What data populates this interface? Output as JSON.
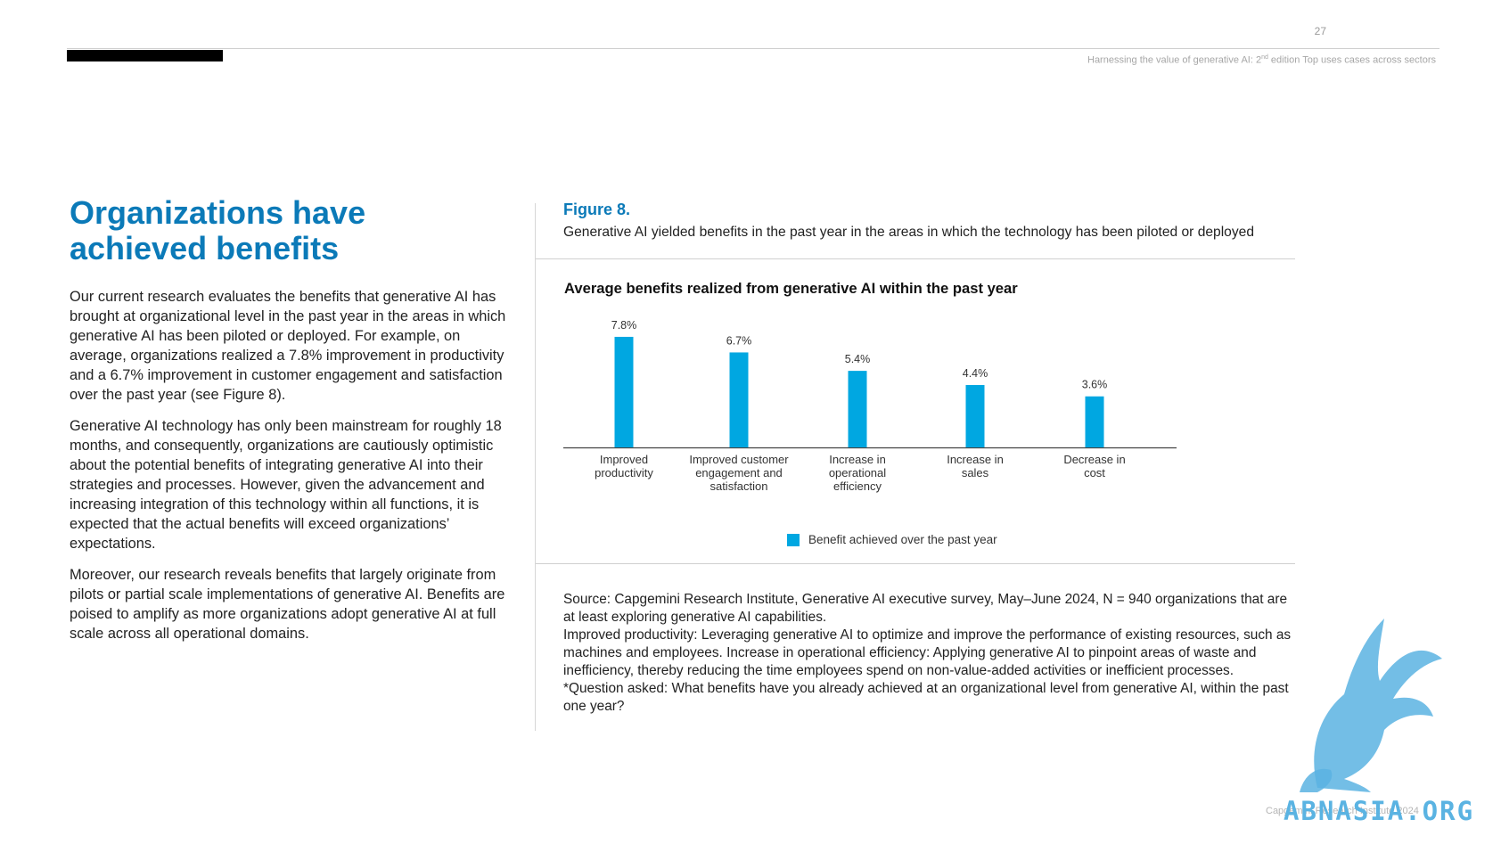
{
  "header": {
    "page_number": "27",
    "running_head_pre": "Harnessing the value of generative AI: 2",
    "running_head_sup": "nd",
    "running_head_post": " edition Top uses cases across sectors"
  },
  "main": {
    "heading": "Organizations have achieved benefits",
    "paragraphs": [
      "Our current research evaluates the benefits that generative AI has brought at organizational level in the past year in the areas in which generative AI has been piloted or deployed. For example, on average, organizations realized a 7.8% improvement in productivity and a 6.7% improvement in customer engagement and satisfaction over the past year (see Figure 8).",
      "Generative AI technology has only been mainstream for roughly 18 months, and consequently, organizations are cautiously optimistic about the potential benefits of integrating generative AI into their strategies and processes. However, given the advancement and increasing integration of this technology within all functions, it is expected that the actual benefits will exceed organizations’ expectations.",
      "Moreover, our research reveals benefits that largely originate from pilots or partial scale implementations of generative AI. Benefits are poised to amplify as more organizations adopt generative AI at full scale across all operational domains."
    ]
  },
  "figure": {
    "label": "Figure 8.",
    "caption": "Generative AI yielded benefits in the past year in the areas in which the technology has been piloted or deployed",
    "source_notes": [
      "Source: Capgemini Research Institute, Generative AI executive survey, May–June 2024, N = 940 organizations that are at least exploring generative AI capabilities.",
      "Improved productivity: Leveraging generative AI to optimize and improve the performance of existing resources, such as machines and employees. Increase in operational efficiency: Applying generative AI to pinpoint areas of waste and inefficiency, thereby reducing the time employees spend on non-value-added activities or inefficient processes.",
      "*Question asked: What benefits have you already achieved at an organizational level from generative AI, within the past one year?"
    ]
  },
  "chart_data": {
    "type": "bar",
    "title": "Average benefits realized from generative AI within the past year",
    "categories": [
      [
        "Improved",
        "productivity"
      ],
      [
        "Improved customer",
        "engagement and",
        "satisfaction"
      ],
      [
        "Increase in",
        "operational",
        "efficiency"
      ],
      [
        "Increase in",
        "sales"
      ],
      [
        "Decrease in",
        "cost"
      ]
    ],
    "series": [
      {
        "name": "Benefit achieved over the past year",
        "values": [
          7.8,
          6.7,
          5.4,
          4.4,
          3.6
        ],
        "labels": [
          "7.8%",
          "6.7%",
          "5.4%",
          "4.4%",
          "3.6%"
        ],
        "color": "#00a7e1"
      }
    ],
    "ylim": [
      0,
      8.3
    ],
    "grid": false,
    "legend_position": "bottom"
  },
  "footer": {
    "copyright": "Capgemini Research Institute 2024",
    "watermark": "ABNASIA.ORG"
  },
  "colors": {
    "accent": "#0b7ab8",
    "bar": "#00a7e1"
  }
}
